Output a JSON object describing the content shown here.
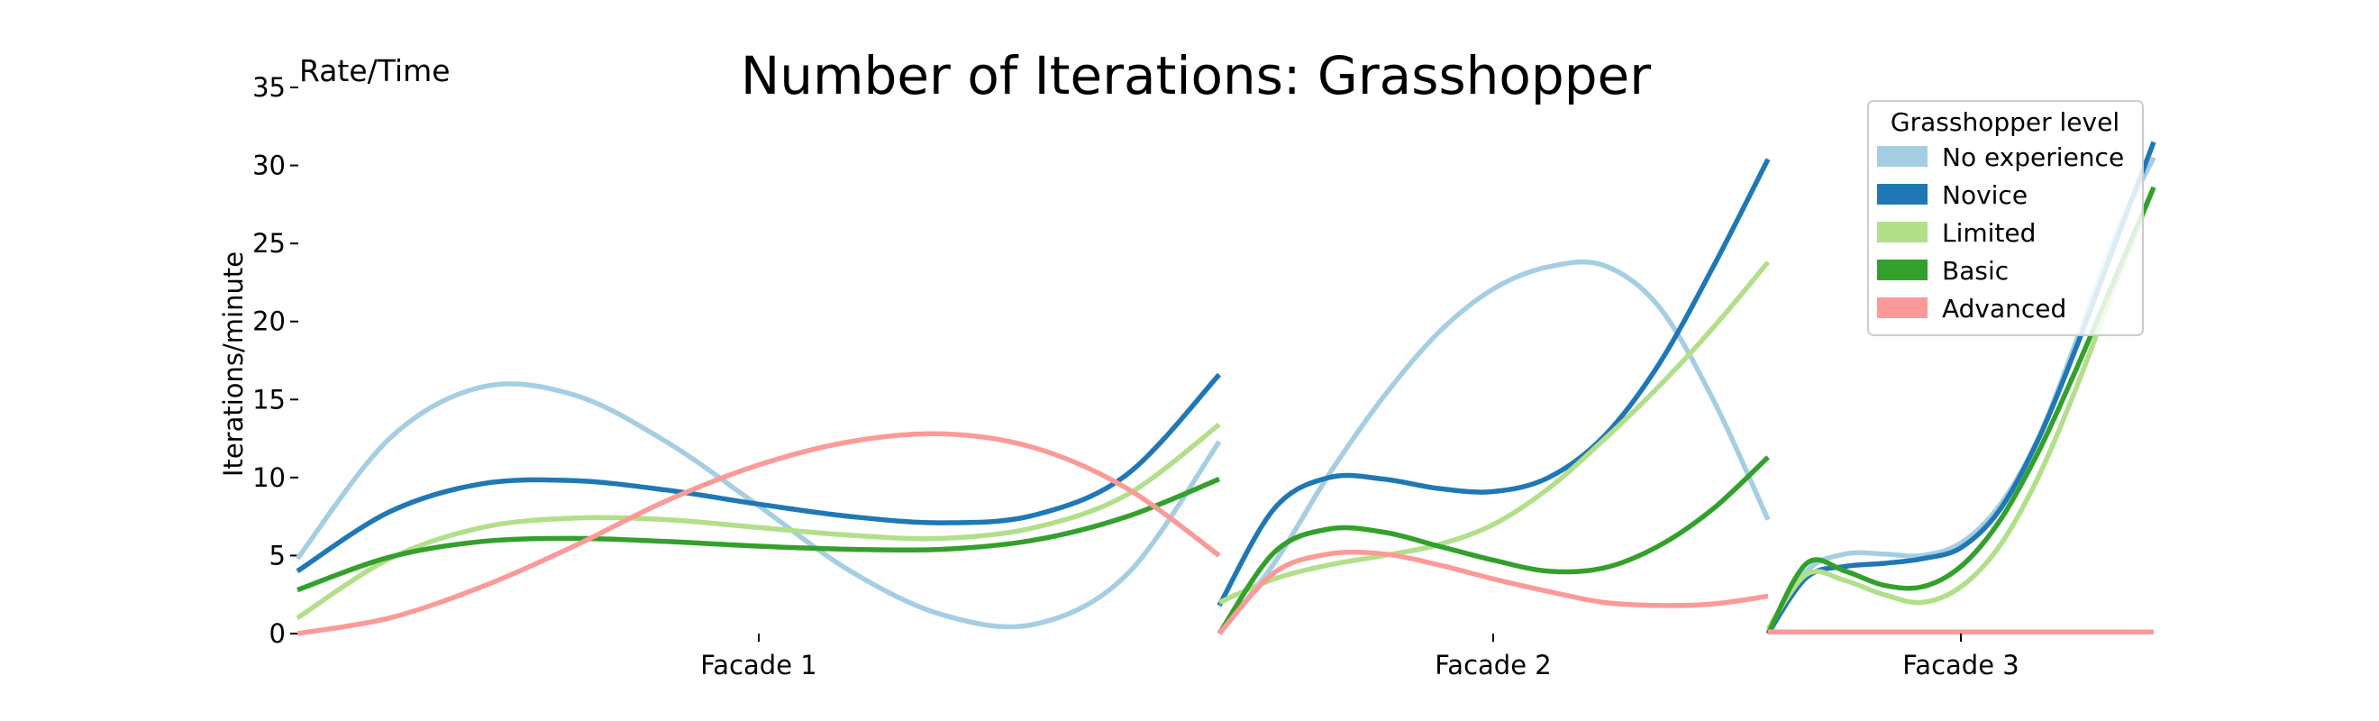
{
  "chart_data": {
    "type": "line",
    "title": "Number of Iterations: Grasshopper",
    "corner_label": "Rate/Time",
    "ylabel": "Iterations/minute",
    "xlabel": "",
    "ylim": [
      0,
      35
    ],
    "yticks": [
      0,
      5,
      10,
      15,
      20,
      25,
      30,
      35
    ],
    "grid": false,
    "legend": {
      "title": "Grasshopper level",
      "placement": "top-right"
    },
    "panels": [
      {
        "label": "Facade 1",
        "series": [
          {
            "name": "No experience",
            "x": [
              0,
              0.1,
              0.2,
              0.3,
              0.4,
              0.5,
              0.6,
              0.7,
              0.8,
              0.9,
              1.0
            ],
            "values": [
              4.8,
              12.5,
              15.8,
              15.3,
              12.3,
              8.2,
              4.0,
              1.2,
              0.6,
              3.8,
              12.3
            ]
          },
          {
            "name": "Novice",
            "x": [
              0,
              0.1,
              0.2,
              0.3,
              0.4,
              0.5,
              0.6,
              0.7,
              0.8,
              0.9,
              1.0
            ],
            "values": [
              4.0,
              7.8,
              9.6,
              9.8,
              9.2,
              8.3,
              7.5,
              7.1,
              7.6,
              10.2,
              16.6
            ]
          },
          {
            "name": "Limited",
            "x": [
              0,
              0.1,
              0.2,
              0.3,
              0.4,
              0.5,
              0.6,
              0.7,
              0.8,
              0.9,
              1.0
            ],
            "values": [
              1.0,
              4.8,
              6.8,
              7.4,
              7.3,
              6.8,
              6.3,
              6.1,
              6.8,
              8.9,
              13.4
            ]
          },
          {
            "name": "Basic",
            "x": [
              0,
              0.1,
              0.2,
              0.3,
              0.4,
              0.5,
              0.6,
              0.7,
              0.8,
              0.9,
              1.0
            ],
            "values": [
              2.8,
              4.9,
              5.9,
              6.1,
              5.9,
              5.6,
              5.4,
              5.4,
              6.0,
              7.5,
              9.9
            ]
          },
          {
            "name": "Advanced",
            "x": [
              0,
              0.1,
              0.2,
              0.3,
              0.4,
              0.5,
              0.6,
              0.7,
              0.8,
              0.9,
              1.0
            ],
            "values": [
              0.0,
              1.0,
              3.0,
              5.6,
              8.5,
              10.8,
              12.3,
              12.8,
              11.9,
              9.3,
              5.0
            ]
          }
        ]
      },
      {
        "label": "Facade 2",
        "series": [
          {
            "name": "No experience",
            "x": [
              0,
              0.1,
              0.2,
              0.3,
              0.4,
              0.5,
              0.6,
              0.7,
              0.8,
              0.9,
              1.0
            ],
            "values": [
              0.0,
              4.5,
              10.2,
              15.2,
              19.3,
              22.1,
              23.5,
              23.6,
              21.0,
              15.0,
              7.3
            ]
          },
          {
            "name": "Novice",
            "x": [
              0,
              0.1,
              0.2,
              0.3,
              0.4,
              0.5,
              0.6,
              0.7,
              0.8,
              0.9,
              1.0
            ],
            "values": [
              1.8,
              8.0,
              10.0,
              9.9,
              9.3,
              9.1,
              10.0,
              12.6,
              17.2,
              23.5,
              30.4
            ]
          },
          {
            "name": "Limited",
            "x": [
              0,
              0.1,
              0.2,
              0.3,
              0.4,
              0.5,
              0.6,
              0.7,
              0.8,
              0.9,
              1.0
            ],
            "values": [
              2.0,
              3.5,
              4.4,
              5.0,
              5.7,
              7.0,
              9.3,
              12.4,
              15.8,
              19.6,
              23.8
            ]
          },
          {
            "name": "Basic",
            "x": [
              0,
              0.1,
              0.2,
              0.3,
              0.4,
              0.5,
              0.6,
              0.7,
              0.8,
              0.9,
              1.0
            ],
            "values": [
              0.0,
              5.2,
              6.7,
              6.5,
              5.6,
              4.7,
              4.0,
              4.2,
              5.6,
              8.0,
              11.3
            ]
          },
          {
            "name": "Advanced",
            "x": [
              0,
              0.1,
              0.2,
              0.3,
              0.4,
              0.5,
              0.6,
              0.7,
              0.8,
              0.9,
              1.0
            ],
            "values": [
              0.0,
              3.9,
              5.1,
              5.1,
              4.4,
              3.5,
              2.7,
              2.0,
              1.8,
              1.9,
              2.4
            ]
          }
        ]
      },
      {
        "label": "Facade 3",
        "series": [
          {
            "name": "No experience",
            "x": [
              0,
              0.1,
              0.2,
              0.3,
              0.4,
              0.5,
              0.6,
              0.7,
              0.8,
              0.9,
              1.0
            ],
            "values": [
              0.0,
              4.0,
              5.1,
              5.1,
              5.0,
              5.8,
              8.2,
              12.5,
              18.8,
              25.5,
              30.5
            ]
          },
          {
            "name": "Novice",
            "x": [
              0,
              0.1,
              0.2,
              0.3,
              0.4,
              0.5,
              0.6,
              0.7,
              0.8,
              0.9,
              1.0
            ],
            "values": [
              0.0,
              3.6,
              4.3,
              4.5,
              4.8,
              5.5,
              7.9,
              12.4,
              18.4,
              25.0,
              31.5
            ]
          },
          {
            "name": "Limited",
            "x": [
              0,
              0.1,
              0.2,
              0.3,
              0.4,
              0.5,
              0.6,
              0.7,
              0.8,
              0.9,
              1.0
            ],
            "values": [
              0.3,
              3.8,
              3.4,
              2.5,
              2.0,
              3.0,
              5.6,
              10.0,
              15.8,
              22.3,
              28.6
            ]
          },
          {
            "name": "Basic",
            "x": [
              0,
              0.1,
              0.2,
              0.3,
              0.4,
              0.5,
              0.6,
              0.7,
              0.8,
              0.9,
              1.0
            ],
            "values": [
              0.0,
              4.5,
              4.0,
              3.1,
              3.0,
              4.3,
              7.2,
              11.6,
              17.0,
              22.8,
              28.6
            ]
          },
          {
            "name": "Advanced",
            "x": [
              0,
              0.1,
              0.2,
              0.3,
              0.4,
              0.5,
              0.6,
              0.7,
              0.8,
              0.9,
              1.0
            ],
            "values": [
              0.1,
              0.1,
              0.1,
              0.1,
              0.1,
              0.1,
              0.1,
              0.1,
              0.1,
              0.1,
              0.1
            ]
          }
        ]
      }
    ],
    "legend_entries": [
      {
        "name": "No experience",
        "color": "#a6cee3"
      },
      {
        "name": "Novice",
        "color": "#1f78b4"
      },
      {
        "name": "Limited",
        "color": "#b2df8a"
      },
      {
        "name": "Basic",
        "color": "#33a02c"
      },
      {
        "name": "Advanced",
        "color": "#fb9a99"
      }
    ]
  }
}
